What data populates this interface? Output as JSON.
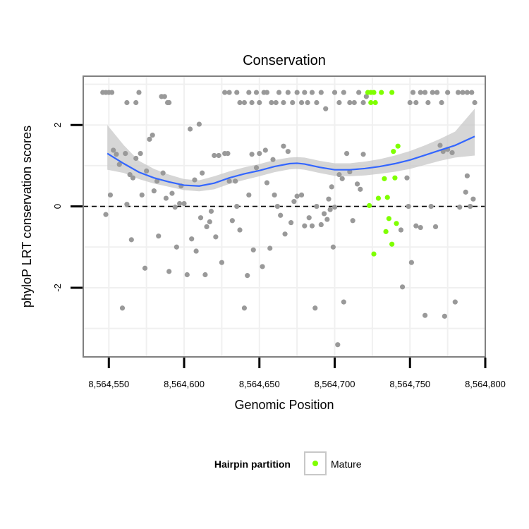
{
  "chart_data": {
    "type": "scatter",
    "title": "Conservation",
    "xlabel": "Genomic Position",
    "ylabel": "phyloP LRT conservation scores",
    "xlim": [
      8564533,
      8564800
    ],
    "ylim": [
      -3.7,
      3.2
    ],
    "x_ticks": [
      8564550,
      8564600,
      8564650,
      8564700,
      8564750,
      8564800
    ],
    "x_tick_labels": [
      "8,564,550",
      "8,564,600",
      "8,564,650",
      "8,564,700",
      "8,564,750",
      "8,564,800"
    ],
    "y_ticks": [
      -2,
      0,
      2
    ],
    "y_tick_labels": [
      "-2",
      "0",
      "2"
    ],
    "reference_line": {
      "y": 0,
      "style": "dashed"
    },
    "grid": true,
    "legend": {
      "title": "Hairpin partition",
      "placement": "bottom",
      "entries": [
        {
          "label": "Mature",
          "color": "#7fff00"
        }
      ]
    },
    "colors": {
      "other": "#999999",
      "mature": "#7fff00",
      "smooth": "#3366ff",
      "band": "#c8c8c8"
    },
    "series": [
      {
        "name": "Mature",
        "color": "#7fff00",
        "points": [
          [
            8564722,
            2.8
          ],
          [
            8564724,
            2.8
          ],
          [
            8564726,
            2.8
          ],
          [
            8564724,
            2.55
          ],
          [
            8564727,
            2.55
          ],
          [
            8564731,
            2.8
          ],
          [
            8564738,
            2.8
          ],
          [
            8564723,
            0.02
          ],
          [
            8564726,
            -1.17
          ],
          [
            8564729,
            0.2
          ],
          [
            8564733,
            0.68
          ],
          [
            8564735,
            0.22
          ],
          [
            8564736,
            -0.3
          ],
          [
            8564734,
            -0.62
          ],
          [
            8564738,
            -0.93
          ],
          [
            8564739,
            1.35
          ],
          [
            8564740,
            0.7
          ],
          [
            8564742,
            1.48
          ],
          [
            8564741,
            -0.42
          ]
        ]
      },
      {
        "name": "",
        "color": "#999999",
        "points": [
          [
            8564546,
            2.8
          ],
          [
            8564548,
            2.8
          ],
          [
            8564550,
            2.8
          ],
          [
            8564552,
            2.8
          ],
          [
            8564562,
            2.55
          ],
          [
            8564568,
            2.55
          ],
          [
            8564570,
            2.8
          ],
          [
            8564585,
            2.7
          ],
          [
            8564587,
            2.7
          ],
          [
            8564589,
            2.55
          ],
          [
            8564590,
            2.55
          ],
          [
            8564627,
            2.8
          ],
          [
            8564630,
            2.8
          ],
          [
            8564635,
            2.8
          ],
          [
            8564637,
            2.55
          ],
          [
            8564640,
            2.55
          ],
          [
            8564643,
            2.8
          ],
          [
            8564645,
            2.55
          ],
          [
            8564648,
            2.8
          ],
          [
            8564650,
            2.55
          ],
          [
            8564653,
            2.8
          ],
          [
            8564655,
            2.8
          ],
          [
            8564658,
            2.55
          ],
          [
            8564661,
            2.55
          ],
          [
            8564663,
            2.8
          ],
          [
            8564666,
            2.55
          ],
          [
            8564669,
            2.8
          ],
          [
            8564672,
            2.55
          ],
          [
            8564675,
            2.8
          ],
          [
            8564678,
            2.55
          ],
          [
            8564680,
            2.8
          ],
          [
            8564682,
            2.55
          ],
          [
            8564685,
            2.8
          ],
          [
            8564688,
            2.55
          ],
          [
            8564691,
            2.8
          ],
          [
            8564694,
            2.4
          ],
          [
            8564700,
            2.8
          ],
          [
            8564703,
            2.55
          ],
          [
            8564706,
            2.8
          ],
          [
            8564710,
            2.55
          ],
          [
            8564713,
            2.55
          ],
          [
            8564716,
            2.8
          ],
          [
            8564719,
            2.55
          ],
          [
            8564721,
            2.7
          ],
          [
            8564750,
            2.55
          ],
          [
            8564752,
            2.8
          ],
          [
            8564754,
            2.55
          ],
          [
            8564757,
            2.8
          ],
          [
            8564760,
            2.8
          ],
          [
            8564762,
            2.55
          ],
          [
            8564765,
            2.8
          ],
          [
            8564768,
            2.8
          ],
          [
            8564771,
            2.55
          ],
          [
            8564775,
            2.8
          ],
          [
            8564782,
            2.8
          ],
          [
            8564785,
            2.8
          ],
          [
            8564788,
            2.8
          ],
          [
            8564791,
            2.8
          ],
          [
            8564793,
            2.55
          ],
          [
            8564548,
            -0.2
          ],
          [
            8564551,
            0.28
          ],
          [
            8564553,
            1.38
          ],
          [
            8564555,
            1.28
          ],
          [
            8564557,
            1.03
          ],
          [
            8564559,
            -2.5
          ],
          [
            8564561,
            1.3
          ],
          [
            8564562,
            0.05
          ],
          [
            8564564,
            0.78
          ],
          [
            8564566,
            0.7
          ],
          [
            8564568,
            1.18
          ],
          [
            8564565,
            -0.82
          ],
          [
            8564571,
            1.3
          ],
          [
            8564572,
            0.28
          ],
          [
            8564574,
            -1.52
          ],
          [
            8564575,
            0.87
          ],
          [
            8564577,
            1.65
          ],
          [
            8564579,
            1.75
          ],
          [
            8564580,
            0.38
          ],
          [
            8564582,
            0.62
          ],
          [
            8564583,
            -0.73
          ],
          [
            8564586,
            0.82
          ],
          [
            8564588,
            0.2
          ],
          [
            8564590,
            -1.6
          ],
          [
            8564592,
            0.32
          ],
          [
            8564594,
            -0.02
          ],
          [
            8564595,
            -1.0
          ],
          [
            8564597,
            0.07
          ],
          [
            8564598,
            0.5
          ],
          [
            8564600,
            0.07
          ],
          [
            8564602,
            -1.68
          ],
          [
            8564604,
            1.9
          ],
          [
            8564605,
            -0.8
          ],
          [
            8564607,
            0.65
          ],
          [
            8564608,
            -1.1
          ],
          [
            8564610,
            2.02
          ],
          [
            8564611,
            -0.28
          ],
          [
            8564612,
            0.82
          ],
          [
            8564614,
            -1.68
          ],
          [
            8564615,
            -0.5
          ],
          [
            8564617,
            -0.38
          ],
          [
            8564618,
            -0.12
          ],
          [
            8564620,
            1.25
          ],
          [
            8564621,
            -0.75
          ],
          [
            8564623,
            1.25
          ],
          [
            8564625,
            -1.38
          ],
          [
            8564627,
            1.3
          ],
          [
            8564629,
            1.3
          ],
          [
            8564630,
            0.62
          ],
          [
            8564632,
            -0.35
          ],
          [
            8564634,
            0.62
          ],
          [
            8564635,
            0.0
          ],
          [
            8564637,
            -0.58
          ],
          [
            8564640,
            -2.5
          ],
          [
            8564642,
            -1.7
          ],
          [
            8564643,
            0.28
          ],
          [
            8564645,
            1.28
          ],
          [
            8564646,
            -1.07
          ],
          [
            8564648,
            0.95
          ],
          [
            8564650,
            1.3
          ],
          [
            8564652,
            -1.48
          ],
          [
            8564654,
            1.38
          ],
          [
            8564655,
            0.58
          ],
          [
            8564657,
            -1.03
          ],
          [
            8564659,
            1.15
          ],
          [
            8564660,
            0.28
          ],
          [
            8564662,
            0.0
          ],
          [
            8564664,
            -0.22
          ],
          [
            8564666,
            1.48
          ],
          [
            8564667,
            -0.68
          ],
          [
            8564669,
            1.35
          ],
          [
            8564671,
            -0.4
          ],
          [
            8564673,
            0.12
          ],
          [
            8564675,
            0.25
          ],
          [
            8564678,
            0.28
          ],
          [
            8564680,
            -0.48
          ],
          [
            8564683,
            -0.28
          ],
          [
            8564685,
            -0.48
          ],
          [
            8564687,
            -2.5
          ],
          [
            8564688,
            0.0
          ],
          [
            8564691,
            -0.45
          ],
          [
            8564693,
            -0.18
          ],
          [
            8564695,
            -0.32
          ],
          [
            8564696,
            0.18
          ],
          [
            8564698,
            0.48
          ],
          [
            8564697,
            -0.08
          ],
          [
            8564699,
            -1.0
          ],
          [
            8564700,
            -0.02
          ],
          [
            8564702,
            -3.4
          ],
          [
            8564703,
            0.78
          ],
          [
            8564705,
            0.68
          ],
          [
            8564706,
            -2.35
          ],
          [
            8564708,
            1.3
          ],
          [
            8564710,
            0.85
          ],
          [
            8564712,
            -0.35
          ],
          [
            8564715,
            0.55
          ],
          [
            8564717,
            0.42
          ],
          [
            8564719,
            1.28
          ],
          [
            8564744,
            -0.58
          ],
          [
            8564745,
            -1.98
          ],
          [
            8564748,
            0.7
          ],
          [
            8564749,
            0.0
          ],
          [
            8564751,
            -1.38
          ],
          [
            8564754,
            -0.48
          ],
          [
            8564757,
            -0.52
          ],
          [
            8564760,
            -2.68
          ],
          [
            8564764,
            0.0
          ],
          [
            8564767,
            -0.5
          ],
          [
            8564770,
            1.5
          ],
          [
            8564772,
            1.35
          ],
          [
            8564773,
            -2.7
          ],
          [
            8564775,
            1.4
          ],
          [
            8564778,
            1.32
          ],
          [
            8564780,
            -2.35
          ],
          [
            8564783,
            -0.02
          ],
          [
            8564787,
            0.35
          ],
          [
            8564788,
            0.75
          ],
          [
            8564790,
            0.0
          ],
          [
            8564792,
            0.18
          ]
        ]
      }
    ],
    "smooth": {
      "x": [
        8564549,
        8564560,
        8564570,
        8564580,
        8564590,
        8564600,
        8564610,
        8564620,
        8564630,
        8564640,
        8564650,
        8564660,
        8564670,
        8564675,
        8564680,
        8564690,
        8564700,
        8564710,
        8564720,
        8564730,
        8564740,
        8564750,
        8564760,
        8564770,
        8564780,
        8564793
      ],
      "y": [
        1.3,
        1.05,
        0.84,
        0.7,
        0.6,
        0.52,
        0.5,
        0.57,
        0.7,
        0.8,
        0.88,
        0.98,
        1.05,
        1.06,
        1.04,
        0.96,
        0.9,
        0.9,
        0.93,
        0.98,
        1.05,
        1.14,
        1.26,
        1.38,
        1.5,
        1.72
      ],
      "lower": [
        0.9,
        0.82,
        0.67,
        0.56,
        0.48,
        0.4,
        0.37,
        0.42,
        0.55,
        0.65,
        0.74,
        0.84,
        0.91,
        0.92,
        0.9,
        0.82,
        0.75,
        0.74,
        0.76,
        0.8,
        0.85,
        0.92,
        1.02,
        1.12,
        1.2,
        1.25
      ],
      "upper": [
        2.0,
        1.5,
        1.12,
        0.92,
        0.78,
        0.67,
        0.64,
        0.74,
        0.86,
        0.96,
        1.04,
        1.14,
        1.2,
        1.21,
        1.2,
        1.12,
        1.06,
        1.06,
        1.1,
        1.16,
        1.25,
        1.36,
        1.5,
        1.66,
        1.84,
        2.4
      ]
    }
  }
}
